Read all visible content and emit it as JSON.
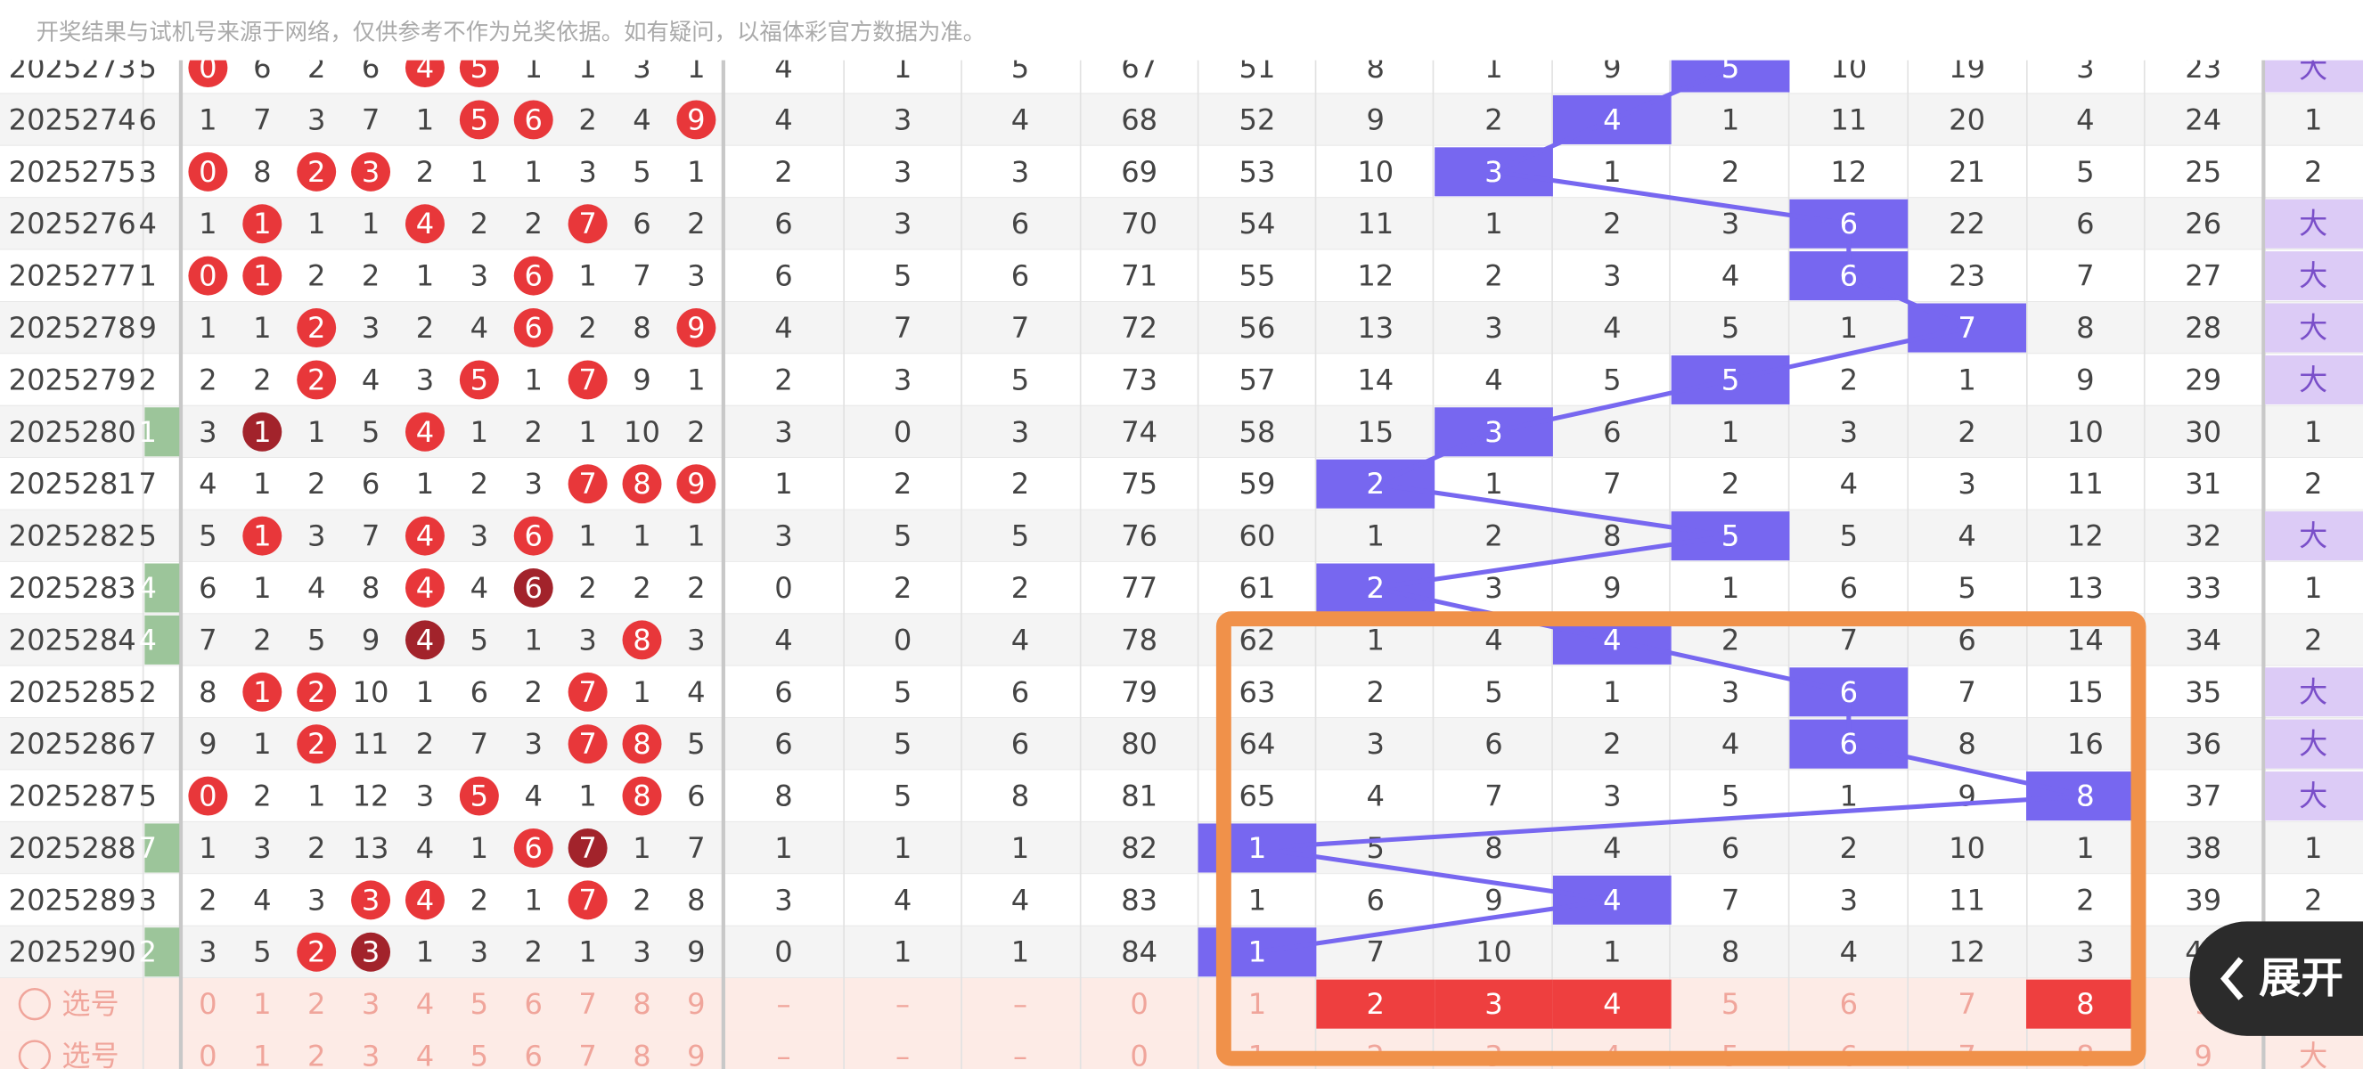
{
  "header": {
    "notice": "开奖结果与试机号来源于网络，仅供参考不作为兑奖依据。如有疑问，以福体彩官方数据为准。"
  },
  "rows": [
    {
      "period": "2025273",
      "edge": "5",
      "digits": [
        0,
        6,
        2,
        6,
        4,
        5,
        1,
        1,
        3,
        1
      ],
      "red": [
        0,
        4,
        5
      ],
      "dark": [],
      "sums": [
        4,
        1,
        5
      ],
      "count": 67,
      "zone": [
        51,
        8,
        1,
        9,
        5,
        10,
        19,
        3
      ],
      "hit": 4,
      "tail": 23,
      "size": "大",
      "big": true,
      "green": false
    },
    {
      "period": "2025274",
      "edge": "6",
      "digits": [
        1,
        7,
        3,
        7,
        1,
        5,
        6,
        2,
        4,
        9
      ],
      "red": [
        5,
        6,
        9
      ],
      "dark": [],
      "sums": [
        4,
        3,
        4
      ],
      "count": 68,
      "zone": [
        52,
        9,
        2,
        4,
        1,
        11,
        20,
        4
      ],
      "hit": 3,
      "tail": 24,
      "size": "1",
      "big": false,
      "green": false
    },
    {
      "period": "2025275",
      "edge": "3",
      "digits": [
        0,
        8,
        2,
        3,
        2,
        1,
        1,
        3,
        5,
        1
      ],
      "red": [
        0,
        2,
        3
      ],
      "dark": [],
      "sums": [
        2,
        3,
        3
      ],
      "count": 69,
      "zone": [
        53,
        10,
        3,
        1,
        2,
        12,
        21,
        5
      ],
      "hit": 2,
      "tail": 25,
      "size": "2",
      "big": false,
      "green": false
    },
    {
      "period": "2025276",
      "edge": "4",
      "digits": [
        1,
        1,
        1,
        1,
        4,
        2,
        2,
        7,
        6,
        2
      ],
      "red": [
        1,
        4,
        7
      ],
      "dark": [],
      "sums": [
        6,
        3,
        6
      ],
      "count": 70,
      "zone": [
        54,
        11,
        1,
        2,
        3,
        6,
        22,
        6
      ],
      "hit": 5,
      "tail": 26,
      "size": "大",
      "big": true,
      "green": false
    },
    {
      "period": "2025277",
      "edge": "1",
      "digits": [
        0,
        1,
        2,
        2,
        1,
        3,
        6,
        1,
        7,
        3
      ],
      "red": [
        0,
        1,
        6
      ],
      "dark": [],
      "sums": [
        6,
        5,
        6
      ],
      "count": 71,
      "zone": [
        55,
        12,
        2,
        3,
        4,
        6,
        23,
        7
      ],
      "hit": 5,
      "tail": 27,
      "size": "大",
      "big": true,
      "green": false
    },
    {
      "period": "2025278",
      "edge": "9",
      "digits": [
        1,
        1,
        2,
        3,
        2,
        4,
        6,
        2,
        8,
        9
      ],
      "red": [
        2,
        6,
        9
      ],
      "dark": [],
      "sums": [
        4,
        7,
        7
      ],
      "count": 72,
      "zone": [
        56,
        13,
        3,
        4,
        5,
        1,
        7,
        8
      ],
      "hit": 6,
      "tail": 28,
      "size": "大",
      "big": true,
      "green": false
    },
    {
      "period": "2025279",
      "edge": "2",
      "digits": [
        2,
        2,
        2,
        4,
        3,
        5,
        1,
        7,
        9,
        1
      ],
      "red": [
        2,
        5,
        7
      ],
      "dark": [],
      "sums": [
        2,
        3,
        5
      ],
      "count": 73,
      "zone": [
        57,
        14,
        4,
        5,
        5,
        2,
        1,
        9
      ],
      "hit": 4,
      "tail": 29,
      "size": "大",
      "big": true,
      "green": false
    },
    {
      "period": "2025280",
      "edge": "1",
      "digits": [
        3,
        1,
        1,
        5,
        4,
        1,
        2,
        1,
        10,
        2
      ],
      "red": [
        4
      ],
      "dark": [
        1
      ],
      "sums": [
        3,
        0,
        3
      ],
      "count": 74,
      "zone": [
        58,
        15,
        3,
        6,
        1,
        3,
        2,
        10
      ],
      "hit": 2,
      "tail": 30,
      "size": "1",
      "big": false,
      "green": true
    },
    {
      "period": "2025281",
      "edge": "7",
      "digits": [
        4,
        1,
        2,
        6,
        1,
        2,
        3,
        7,
        8,
        9
      ],
      "red": [
        7,
        8,
        9
      ],
      "dark": [],
      "sums": [
        1,
        2,
        2
      ],
      "count": 75,
      "zone": [
        59,
        2,
        1,
        7,
        2,
        4,
        3,
        11
      ],
      "hit": 1,
      "tail": 31,
      "size": "2",
      "big": false,
      "green": false
    },
    {
      "period": "2025282",
      "edge": "5",
      "digits": [
        5,
        1,
        3,
        7,
        4,
        3,
        6,
        1,
        1,
        1
      ],
      "red": [
        1,
        4,
        6
      ],
      "dark": [],
      "sums": [
        3,
        5,
        5
      ],
      "count": 76,
      "zone": [
        60,
        1,
        2,
        8,
        5,
        5,
        4,
        12
      ],
      "hit": 4,
      "tail": 32,
      "size": "大",
      "big": true,
      "green": false
    },
    {
      "period": "2025283",
      "edge": "4",
      "digits": [
        6,
        1,
        4,
        8,
        4,
        4,
        6,
        2,
        2,
        2
      ],
      "red": [
        4
      ],
      "dark": [
        6
      ],
      "sums": [
        0,
        2,
        2
      ],
      "count": 77,
      "zone": [
        61,
        2,
        3,
        9,
        1,
        6,
        5,
        13
      ],
      "hit": 1,
      "tail": 33,
      "size": "1",
      "big": false,
      "green": true
    },
    {
      "period": "2025284",
      "edge": "4",
      "digits": [
        7,
        2,
        5,
        9,
        4,
        5,
        1,
        3,
        8,
        3
      ],
      "red": [
        8
      ],
      "dark": [
        4
      ],
      "sums": [
        4,
        0,
        4
      ],
      "count": 78,
      "zone": [
        62,
        1,
        4,
        4,
        2,
        7,
        6,
        14
      ],
      "hit": 3,
      "tail": 34,
      "size": "2",
      "big": false,
      "green": true
    },
    {
      "period": "2025285",
      "edge": "2",
      "digits": [
        8,
        1,
        2,
        10,
        1,
        6,
        2,
        7,
        1,
        4
      ],
      "red": [
        1,
        2,
        7
      ],
      "dark": [],
      "sums": [
        6,
        5,
        6
      ],
      "count": 79,
      "zone": [
        63,
        2,
        5,
        1,
        3,
        6,
        7,
        15
      ],
      "hit": 5,
      "tail": 35,
      "size": "大",
      "big": true,
      "green": false
    },
    {
      "period": "2025286",
      "edge": "7",
      "digits": [
        9,
        1,
        2,
        11,
        2,
        7,
        3,
        7,
        8,
        5
      ],
      "red": [
        2,
        7,
        8
      ],
      "dark": [],
      "sums": [
        6,
        5,
        6
      ],
      "count": 80,
      "zone": [
        64,
        3,
        6,
        2,
        4,
        6,
        8,
        16
      ],
      "hit": 5,
      "tail": 36,
      "size": "大",
      "big": true,
      "green": false
    },
    {
      "period": "2025287",
      "edge": "5",
      "digits": [
        0,
        2,
        1,
        12,
        3,
        5,
        4,
        1,
        8,
        6
      ],
      "red": [
        0,
        5,
        8
      ],
      "dark": [],
      "sums": [
        8,
        5,
        8
      ],
      "count": 81,
      "zone": [
        65,
        4,
        7,
        3,
        5,
        1,
        9,
        8
      ],
      "hit": 7,
      "tail": 37,
      "size": "大",
      "big": true,
      "green": false
    },
    {
      "period": "2025288",
      "edge": "7",
      "digits": [
        1,
        3,
        2,
        13,
        4,
        1,
        6,
        7,
        1,
        7
      ],
      "red": [
        6
      ],
      "dark": [
        7
      ],
      "sums": [
        1,
        1,
        1
      ],
      "count": 82,
      "zone": [
        1,
        5,
        8,
        4,
        6,
        2,
        10,
        1
      ],
      "hit": 0,
      "tail": 38,
      "size": "1",
      "big": false,
      "green": true
    },
    {
      "period": "2025289",
      "edge": "3",
      "digits": [
        2,
        4,
        3,
        3,
        4,
        2,
        1,
        7,
        2,
        8
      ],
      "red": [
        3,
        4,
        7
      ],
      "dark": [],
      "sums": [
        3,
        4,
        4
      ],
      "count": 83,
      "zone": [
        1,
        6,
        9,
        4,
        7,
        3,
        11,
        2
      ],
      "hit": 3,
      "tail": 39,
      "size": "2",
      "big": false,
      "green": false
    },
    {
      "period": "2025290",
      "edge": "2",
      "digits": [
        3,
        5,
        2,
        3,
        1,
        3,
        2,
        1,
        3,
        9
      ],
      "red": [
        2
      ],
      "dark": [
        3
      ],
      "sums": [
        0,
        1,
        1
      ],
      "count": 84,
      "zone": [
        1,
        7,
        10,
        1,
        8,
        4,
        12,
        3
      ],
      "hit": 0,
      "tail": 40,
      "size": "1",
      "big": false,
      "green": true
    }
  ],
  "select": [
    {
      "label": "选号",
      "digits": [
        0,
        1,
        2,
        3,
        4,
        5,
        6,
        7,
        8,
        9
      ],
      "dashes": [
        "–",
        "–",
        "–"
      ],
      "count": 0,
      "zone": [
        1,
        2,
        3,
        4,
        5,
        6,
        7,
        8
      ],
      "red": [
        1,
        2,
        3,
        7
      ],
      "tail": 9,
      "size": "大"
    },
    {
      "label": "选号",
      "digits": [
        0,
        1,
        2,
        3,
        4,
        5,
        6,
        7,
        8,
        9
      ],
      "dashes": [
        "–",
        "–",
        "–"
      ],
      "count": 0,
      "zone": [
        1,
        2,
        3,
        4,
        5,
        6,
        7,
        8
      ],
      "red": [],
      "tail": 9,
      "size": "大"
    }
  ],
  "button": {
    "label": "展开"
  }
}
